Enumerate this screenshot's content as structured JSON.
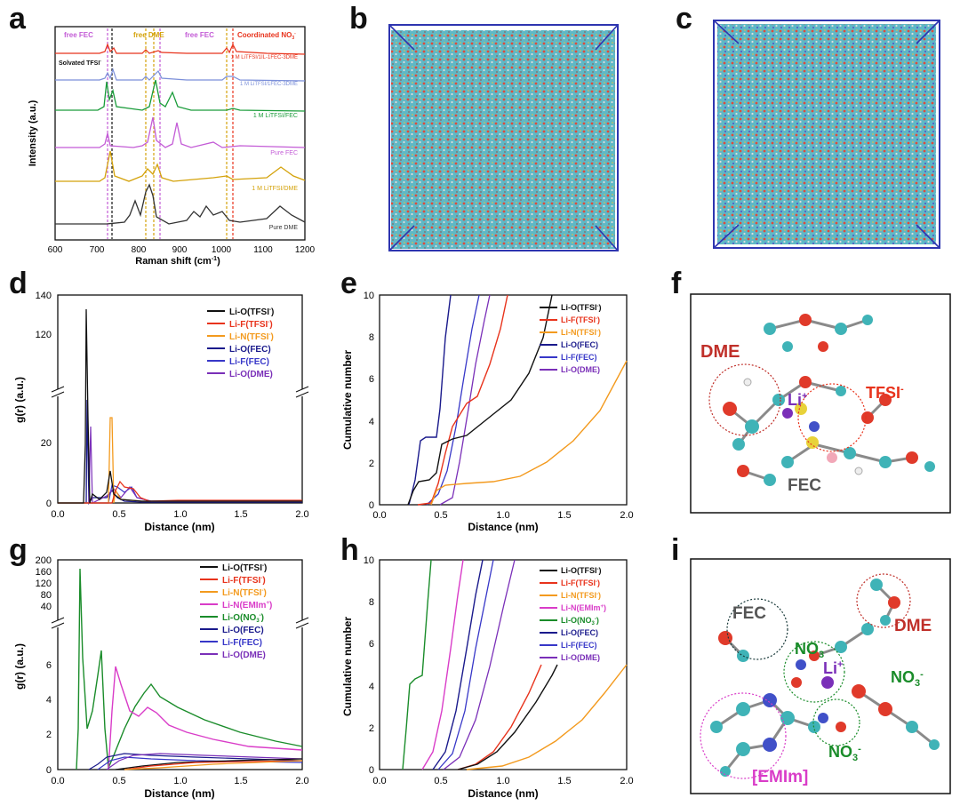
{
  "letters": {
    "a": "a",
    "b": "b",
    "c": "c",
    "d": "d",
    "e": "e",
    "f": "f",
    "g": "g",
    "h": "h",
    "i": "i"
  },
  "colors": {
    "black": "#111111",
    "red": "#e8331c",
    "orange": "#f39a1e",
    "navy": "#1a1a8c",
    "blue": "#3737c8",
    "purple": "#7a2fb8",
    "magenta": "#d93cc8",
    "green": "#1a8c2a",
    "goldline": "#d4a20a",
    "gray": "#333333",
    "box": "#2e35b0"
  },
  "panel_a": {
    "ylabel": "Intensity (a.u.)",
    "xlabel": "Raman shift (cm",
    "xlabel_sup": "-1",
    "xlabel_end": ")",
    "ticks": [
      "600",
      "700",
      "800",
      "900",
      "1000",
      "1100",
      "1200"
    ],
    "annotations": {
      "free_fec_1": "free FEC",
      "free_dme": "free DME",
      "free_fec_2": "free FEC",
      "coord_no3": "Coordinated NO",
      "coord_no3_sub": "3",
      "coord_no3_sup": "-",
      "solvated": "Solvated TFSI",
      "solvated_sup": "-"
    },
    "traces": [
      {
        "label": "1 M LiTFSI/1IL-1FEC-3DME",
        "color": "#e8331c"
      },
      {
        "label": "1 M LiTFSI/1FEC-3DME",
        "color": "#7b8fd9"
      },
      {
        "label": "1 M LiTFSI/FEC",
        "color": "#1a9c3a"
      },
      {
        "label": "Pure FEC",
        "color": "#c35bd6"
      },
      {
        "label": "1 M LiTFSI/DME",
        "color": "#d4a20a"
      },
      {
        "label": "Pure DME",
        "color": "#333333"
      }
    ]
  },
  "panel_d": {
    "ylabel": "g(r) (a.u.)",
    "xlabel": "Distance (nm)",
    "yticks_top": [
      "140",
      "120"
    ],
    "yticks_bot": [
      "20",
      "0"
    ],
    "xticks": [
      "0.0",
      "0.5",
      "1.0",
      "1.5",
      "2.0"
    ],
    "legend": [
      {
        "label": "Li-O(TFSI",
        "sup": "-",
        "tail": ")",
        "color": "#111111"
      },
      {
        "label": "Li-F(TFSI",
        "sup": "-",
        "tail": ")",
        "color": "#e8331c"
      },
      {
        "label": "Li-N(TFSI",
        "sup": "-",
        "tail": ")",
        "color": "#f39a1e"
      },
      {
        "label": "Li-O(FEC)",
        "sup": "",
        "tail": "",
        "color": "#1a1a8c"
      },
      {
        "label": "Li-F(FEC)",
        "sup": "",
        "tail": "",
        "color": "#3737c8"
      },
      {
        "label": "Li-O(DME)",
        "sup": "",
        "tail": "",
        "color": "#7a2fb8"
      }
    ]
  },
  "panel_e": {
    "ylabel": "Cumulative number",
    "xlabel": "Distance (nm)",
    "yticks": [
      "0",
      "2",
      "4",
      "6",
      "8",
      "10"
    ],
    "xticks": [
      "0.0",
      "0.5",
      "1.0",
      "1.5",
      "2.0"
    ],
    "legend": [
      {
        "label": "Li-O(TFSI",
        "sup": "-",
        "tail": ")",
        "color": "#111111"
      },
      {
        "label": "Li-F(TFSI",
        "sup": "-",
        "tail": ")",
        "color": "#e8331c"
      },
      {
        "label": "Li-N(TFSI",
        "sup": "-",
        "tail": ")",
        "color": "#f39a1e"
      },
      {
        "label": "Li-O(FEC)",
        "sup": "",
        "tail": "",
        "color": "#1a1a8c"
      },
      {
        "label": "Li-F(FEC)",
        "sup": "",
        "tail": "",
        "color": "#3737c8"
      },
      {
        "label": "Li-O(DME)",
        "sup": "",
        "tail": "",
        "color": "#7a2fb8"
      }
    ]
  },
  "panel_f": {
    "dme": "DME",
    "li": "Li",
    "li_sup": "+",
    "tfsi": "TFSI",
    "tfsi_sup": "-",
    "fec": "FEC"
  },
  "panel_g": {
    "ylabel": "g(r) (a.u.)",
    "xlabel": "Distance (nm)",
    "yticks_top": [
      "200",
      "160",
      "120",
      "80",
      "40"
    ],
    "yticks_bot": [
      "6",
      "4",
      "2",
      "0"
    ],
    "xticks": [
      "0.0",
      "0.5",
      "1.0",
      "1.5",
      "2.0"
    ],
    "legend": [
      {
        "label": "Li-O(TFSI",
        "sup": "-",
        "tail": ")",
        "color": "#111111"
      },
      {
        "label": "Li-F(TFSI",
        "sup": "-",
        "tail": ")",
        "color": "#e8331c"
      },
      {
        "label": "Li-N(TFSI",
        "sup": "-",
        "tail": ")",
        "color": "#f39a1e"
      },
      {
        "label": "Li-N(EMIm",
        "sup": "+",
        "tail": ")",
        "color": "#d93cc8"
      },
      {
        "label": "Li-O(NO",
        "sub": "3",
        "sup": "-",
        "tail": ")",
        "color": "#1a8c2a"
      },
      {
        "label": "Li-O(FEC)",
        "sup": "",
        "tail": "",
        "color": "#1a1a8c"
      },
      {
        "label": "Li-F(FEC)",
        "sup": "",
        "tail": "",
        "color": "#3737c8"
      },
      {
        "label": "Li-O(DME)",
        "sup": "",
        "tail": "",
        "color": "#7a2fb8"
      }
    ]
  },
  "panel_h": {
    "ylabel": "Cumulative number",
    "xlabel": "Distance (nm)",
    "yticks": [
      "0",
      "2",
      "4",
      "6",
      "8",
      "10"
    ],
    "xticks": [
      "0.0",
      "0.5",
      "1.0",
      "1.5",
      "2.0"
    ],
    "legend": [
      {
        "label": "Li-O(TFSI",
        "sup": "-",
        "tail": ")",
        "color": "#111111"
      },
      {
        "label": "Li-F(TFSI",
        "sup": "-",
        "tail": ")",
        "color": "#e8331c"
      },
      {
        "label": "Li-N(TFSI",
        "sup": "-",
        "tail": ")",
        "color": "#f39a1e"
      },
      {
        "label": "Li-N(EMIm",
        "sup": "+",
        "tail": ")",
        "color": "#d93cc8"
      },
      {
        "label": "Li-O(NO",
        "sub": "3",
        "sup": "-",
        "tail": ")",
        "color": "#1a8c2a"
      },
      {
        "label": "Li-O(FEC)",
        "sup": "",
        "tail": "",
        "color": "#1a1a8c"
      },
      {
        "label": "Li-F(FEC)",
        "sup": "",
        "tail": "",
        "color": "#3737c8"
      },
      {
        "label": "Li-O(DME)",
        "sup": "",
        "tail": "",
        "color": "#7a2fb8"
      }
    ]
  },
  "panel_i": {
    "fec": "FEC",
    "dme": "DME",
    "no3": "NO",
    "no3_sub": "3",
    "no3_sup": "-",
    "li": "Li",
    "li_sup": "+",
    "emim": "[EMIm]"
  }
}
